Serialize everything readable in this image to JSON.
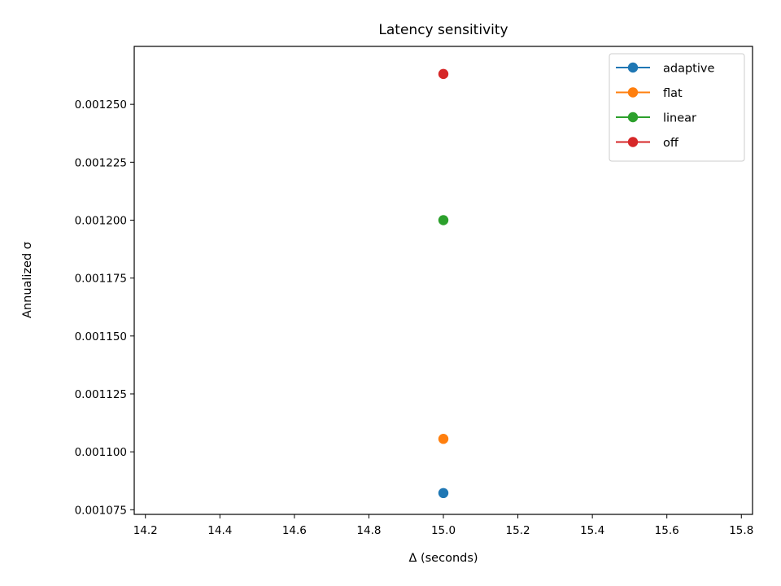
{
  "chart_data": {
    "type": "line",
    "title": "Latency sensitivity",
    "xlabel": "Δ (seconds)",
    "ylabel": "Annualized σ",
    "xlim": [
      14.17,
      15.83
    ],
    "ylim": [
      0.001073,
      0.001275
    ],
    "xticks": [
      14.2,
      14.4,
      14.6,
      14.8,
      15.0,
      15.2,
      15.4,
      15.6,
      15.8
    ],
    "xtick_labels": [
      "14.2",
      "14.4",
      "14.6",
      "14.8",
      "15.0",
      "15.2",
      "15.4",
      "15.6",
      "15.8"
    ],
    "yticks": [
      0.001075,
      0.0011,
      0.001125,
      0.00115,
      0.001175,
      0.0012,
      0.001225,
      0.00125
    ],
    "ytick_labels": [
      "0.001075",
      "0.001100",
      "0.001125",
      "0.001150",
      "0.001175",
      "0.001200",
      "0.001225",
      "0.001250"
    ],
    "grid": false,
    "legend_position": "top-right",
    "series": [
      {
        "name": "adaptive",
        "color": "#1f77b4",
        "x": [
          15.0
        ],
        "y": [
          0.0010822
        ]
      },
      {
        "name": "flat",
        "color": "#ff7f0e",
        "x": [
          15.0
        ],
        "y": [
          0.0011056
        ]
      },
      {
        "name": "linear",
        "color": "#2ca02c",
        "x": [
          15.0
        ],
        "y": [
          0.0012
        ]
      },
      {
        "name": "off",
        "color": "#d62728",
        "x": [
          15.0
        ],
        "y": [
          0.0012631
        ]
      }
    ]
  }
}
